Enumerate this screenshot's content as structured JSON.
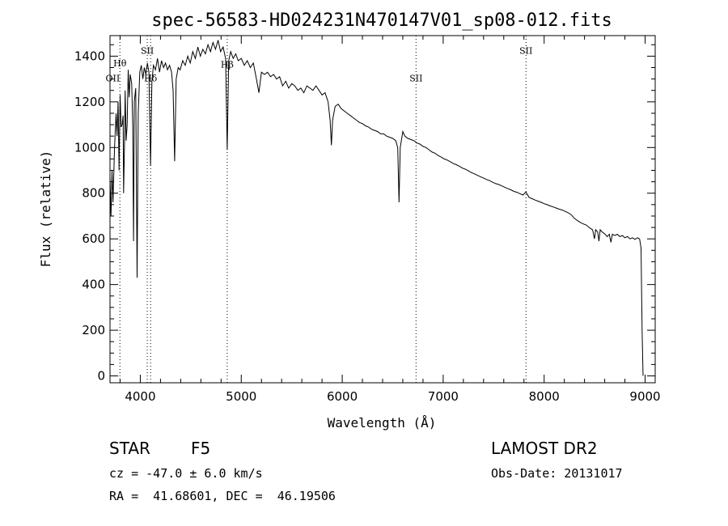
{
  "chart_data": {
    "type": "line",
    "title": "spec-56583-HD024231N470147V01_sp08-012.fits",
    "xlabel": "Wavelength (Å)",
    "ylabel": "Flux (relative)",
    "xlim": [
      3700,
      9100
    ],
    "ylim": [
      -30,
      1490
    ],
    "x_ticks": [
      4000,
      5000,
      6000,
      7000,
      8000,
      9000
    ],
    "y_ticks": [
      0,
      200,
      400,
      600,
      800,
      1000,
      1200,
      1400
    ],
    "grid": false,
    "line_markers": [
      {
        "label": "OII",
        "x": 3727,
        "y": 1290,
        "dotted": false
      },
      {
        "label": "Hθ",
        "x": 3798,
        "y": 1355,
        "dotted": true
      },
      {
        "label": "SII",
        "x": 4069,
        "y": 1410,
        "dotted": true
      },
      {
        "label": "Hδ",
        "x": 4102,
        "y": 1290,
        "dotted": true
      },
      {
        "label": "Hβ",
        "x": 4861,
        "y": 1350,
        "dotted": true
      },
      {
        "label": "SII",
        "x": 6731,
        "y": 1290,
        "dotted": true
      },
      {
        "label": "SII",
        "x": 7820,
        "y": 1410,
        "dotted": true
      }
    ],
    "series": [
      {
        "color": "#000000",
        "points": [
          [
            3700,
            870
          ],
          [
            3710,
            700
          ],
          [
            3720,
            900
          ],
          [
            3730,
            760
          ],
          [
            3745,
            1000
          ],
          [
            3760,
            1150
          ],
          [
            3770,
            1050
          ],
          [
            3780,
            1200
          ],
          [
            3790,
            900
          ],
          [
            3800,
            1230
          ],
          [
            3810,
            1090
          ],
          [
            3820,
            1100
          ],
          [
            3830,
            1140
          ],
          [
            3835,
            800
          ],
          [
            3845,
            1050
          ],
          [
            3850,
            1250
          ],
          [
            3860,
            1030
          ],
          [
            3870,
            1100
          ],
          [
            3880,
            1340
          ],
          [
            3890,
            1220
          ],
          [
            3900,
            1320
          ],
          [
            3915,
            1280
          ],
          [
            3925,
            1100
          ],
          [
            3933,
            590
          ],
          [
            3940,
            1200
          ],
          [
            3955,
            1260
          ],
          [
            3968,
            430
          ],
          [
            3980,
            1150
          ],
          [
            3995,
            1330
          ],
          [
            4010,
            1360
          ],
          [
            4025,
            1300
          ],
          [
            4040,
            1350
          ],
          [
            4055,
            1320
          ],
          [
            4070,
            1370
          ],
          [
            4085,
            1330
          ],
          [
            4101,
            920
          ],
          [
            4115,
            1290
          ],
          [
            4130,
            1360
          ],
          [
            4150,
            1340
          ],
          [
            4170,
            1390
          ],
          [
            4190,
            1330
          ],
          [
            4210,
            1380
          ],
          [
            4230,
            1350
          ],
          [
            4250,
            1370
          ],
          [
            4270,
            1340
          ],
          [
            4290,
            1360
          ],
          [
            4310,
            1330
          ],
          [
            4325,
            1250
          ],
          [
            4340,
            940
          ],
          [
            4355,
            1300
          ],
          [
            4375,
            1350
          ],
          [
            4395,
            1340
          ],
          [
            4420,
            1380
          ],
          [
            4445,
            1360
          ],
          [
            4470,
            1400
          ],
          [
            4495,
            1370
          ],
          [
            4520,
            1420
          ],
          [
            4545,
            1390
          ],
          [
            4570,
            1440
          ],
          [
            4595,
            1400
          ],
          [
            4620,
            1430
          ],
          [
            4645,
            1410
          ],
          [
            4670,
            1450
          ],
          [
            4695,
            1420
          ],
          [
            4720,
            1460
          ],
          [
            4745,
            1430
          ],
          [
            4770,
            1470
          ],
          [
            4795,
            1420
          ],
          [
            4820,
            1440
          ],
          [
            4845,
            1390
          ],
          [
            4861,
            990
          ],
          [
            4875,
            1380
          ],
          [
            4895,
            1420
          ],
          [
            4920,
            1390
          ],
          [
            4945,
            1410
          ],
          [
            4970,
            1380
          ],
          [
            5000,
            1390
          ],
          [
            5030,
            1360
          ],
          [
            5060,
            1380
          ],
          [
            5090,
            1350
          ],
          [
            5120,
            1370
          ],
          [
            5150,
            1300
          ],
          [
            5175,
            1240
          ],
          [
            5200,
            1330
          ],
          [
            5230,
            1320
          ],
          [
            5260,
            1330
          ],
          [
            5290,
            1310
          ],
          [
            5320,
            1320
          ],
          [
            5350,
            1300
          ],
          [
            5380,
            1310
          ],
          [
            5410,
            1270
          ],
          [
            5440,
            1290
          ],
          [
            5470,
            1260
          ],
          [
            5500,
            1280
          ],
          [
            5530,
            1270
          ],
          [
            5560,
            1250
          ],
          [
            5590,
            1260
          ],
          [
            5620,
            1240
          ],
          [
            5650,
            1270
          ],
          [
            5680,
            1260
          ],
          [
            5710,
            1250
          ],
          [
            5740,
            1270
          ],
          [
            5770,
            1250
          ],
          [
            5800,
            1230
          ],
          [
            5830,
            1240
          ],
          [
            5860,
            1200
          ],
          [
            5880,
            1120
          ],
          [
            5893,
            1010
          ],
          [
            5905,
            1120
          ],
          [
            5930,
            1180
          ],
          [
            5960,
            1190
          ],
          [
            5990,
            1170
          ],
          [
            6020,
            1160
          ],
          [
            6050,
            1150
          ],
          [
            6080,
            1140
          ],
          [
            6110,
            1130
          ],
          [
            6140,
            1120
          ],
          [
            6170,
            1110
          ],
          [
            6200,
            1105
          ],
          [
            6230,
            1095
          ],
          [
            6260,
            1090
          ],
          [
            6290,
            1080
          ],
          [
            6320,
            1075
          ],
          [
            6350,
            1070
          ],
          [
            6380,
            1060
          ],
          [
            6410,
            1060
          ],
          [
            6440,
            1050
          ],
          [
            6470,
            1045
          ],
          [
            6500,
            1040
          ],
          [
            6530,
            1030
          ],
          [
            6550,
            1000
          ],
          [
            6563,
            760
          ],
          [
            6575,
            1000
          ],
          [
            6600,
            1070
          ],
          [
            6620,
            1050
          ],
          [
            6650,
            1040
          ],
          [
            6680,
            1035
          ],
          [
            6710,
            1030
          ],
          [
            6740,
            1020
          ],
          [
            6770,
            1015
          ],
          [
            6800,
            1005
          ],
          [
            6830,
            1000
          ],
          [
            6860,
            990
          ],
          [
            6890,
            980
          ],
          [
            6920,
            975
          ],
          [
            6950,
            965
          ],
          [
            6980,
            958
          ],
          [
            7010,
            950
          ],
          [
            7040,
            945
          ],
          [
            7070,
            938
          ],
          [
            7100,
            930
          ],
          [
            7130,
            925
          ],
          [
            7160,
            918
          ],
          [
            7190,
            910
          ],
          [
            7220,
            905
          ],
          [
            7250,
            898
          ],
          [
            7280,
            890
          ],
          [
            7310,
            885
          ],
          [
            7340,
            878
          ],
          [
            7370,
            872
          ],
          [
            7400,
            866
          ],
          [
            7430,
            860
          ],
          [
            7460,
            855
          ],
          [
            7490,
            848
          ],
          [
            7520,
            842
          ],
          [
            7550,
            838
          ],
          [
            7580,
            832
          ],
          [
            7610,
            826
          ],
          [
            7640,
            820
          ],
          [
            7670,
            815
          ],
          [
            7700,
            808
          ],
          [
            7730,
            804
          ],
          [
            7760,
            798
          ],
          [
            7790,
            792
          ],
          [
            7820,
            805
          ],
          [
            7850,
            782
          ],
          [
            7880,
            776
          ],
          [
            7910,
            770
          ],
          [
            7940,
            765
          ],
          [
            7970,
            760
          ],
          [
            8000,
            754
          ],
          [
            8030,
            750
          ],
          [
            8060,
            744
          ],
          [
            8090,
            740
          ],
          [
            8120,
            735
          ],
          [
            8150,
            730
          ],
          [
            8180,
            726
          ],
          [
            8210,
            720
          ],
          [
            8240,
            714
          ],
          [
            8270,
            705
          ],
          [
            8300,
            690
          ],
          [
            8330,
            680
          ],
          [
            8360,
            672
          ],
          [
            8390,
            665
          ],
          [
            8420,
            660
          ],
          [
            8450,
            648
          ],
          [
            8480,
            640
          ],
          [
            8498,
            600
          ],
          [
            8510,
            640
          ],
          [
            8530,
            630
          ],
          [
            8542,
            590
          ],
          [
            8555,
            640
          ],
          [
            8575,
            630
          ],
          [
            8600,
            622
          ],
          [
            8625,
            610
          ],
          [
            8645,
            620
          ],
          [
            8662,
            585
          ],
          [
            8675,
            620
          ],
          [
            8700,
            615
          ],
          [
            8725,
            620
          ],
          [
            8750,
            610
          ],
          [
            8775,
            615
          ],
          [
            8800,
            605
          ],
          [
            8825,
            610
          ],
          [
            8850,
            600
          ],
          [
            8875,
            605
          ],
          [
            8900,
            598
          ],
          [
            8925,
            605
          ],
          [
            8945,
            600
          ],
          [
            8960,
            560
          ],
          [
            8970,
            200
          ],
          [
            8980,
            0
          ]
        ]
      }
    ]
  },
  "footer": {
    "object_class": "STAR",
    "subclass": "F5",
    "survey": "LAMOST DR2",
    "redshift_line": "cz = -47.0 ± 6.0 km/s",
    "obs_date": "Obs-Date: 20131017",
    "coords_line": "RA =  41.68601, DEC =  46.19506"
  }
}
